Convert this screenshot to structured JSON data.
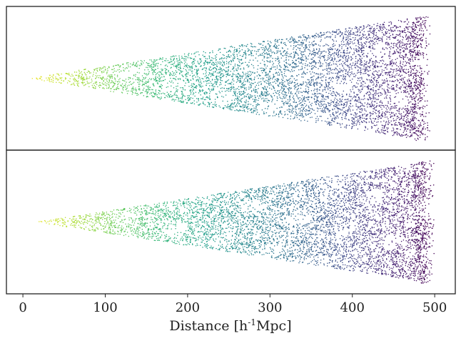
{
  "chart_data": {
    "type": "scatter",
    "layout": "two vertically stacked panels sharing x axis",
    "xlabel": "Distance [h-1Mpc]",
    "xlabel_parts": {
      "main": "Distance [h",
      "sup": "-1",
      "tail": "Mpc]"
    },
    "xlim": [
      -20,
      525
    ],
    "xticks": [
      0,
      100,
      200,
      300,
      400,
      500
    ],
    "xtick_labels": [
      "0",
      "100",
      "200",
      "300",
      "400",
      "500"
    ],
    "colormap": "viridis (yellow at 0, dark purple at 500)",
    "colors": {
      "near": "#fde725",
      "mid": "#21918c",
      "far": "#440154",
      "frame": "#222222"
    },
    "panels": [
      {
        "name": "top",
        "description": "wedge-shaped galaxy distribution (light-cone slice)",
        "apex_distance": 5,
        "max_distance": 495,
        "half_opening_fraction": 0.88,
        "y_ticks": false
      },
      {
        "name": "bottom",
        "description": "wedge-shaped galaxy distribution (light-cone slice)",
        "apex_distance": 15,
        "max_distance": 500,
        "half_opening_fraction": 0.86,
        "y_ticks": false
      }
    ]
  }
}
